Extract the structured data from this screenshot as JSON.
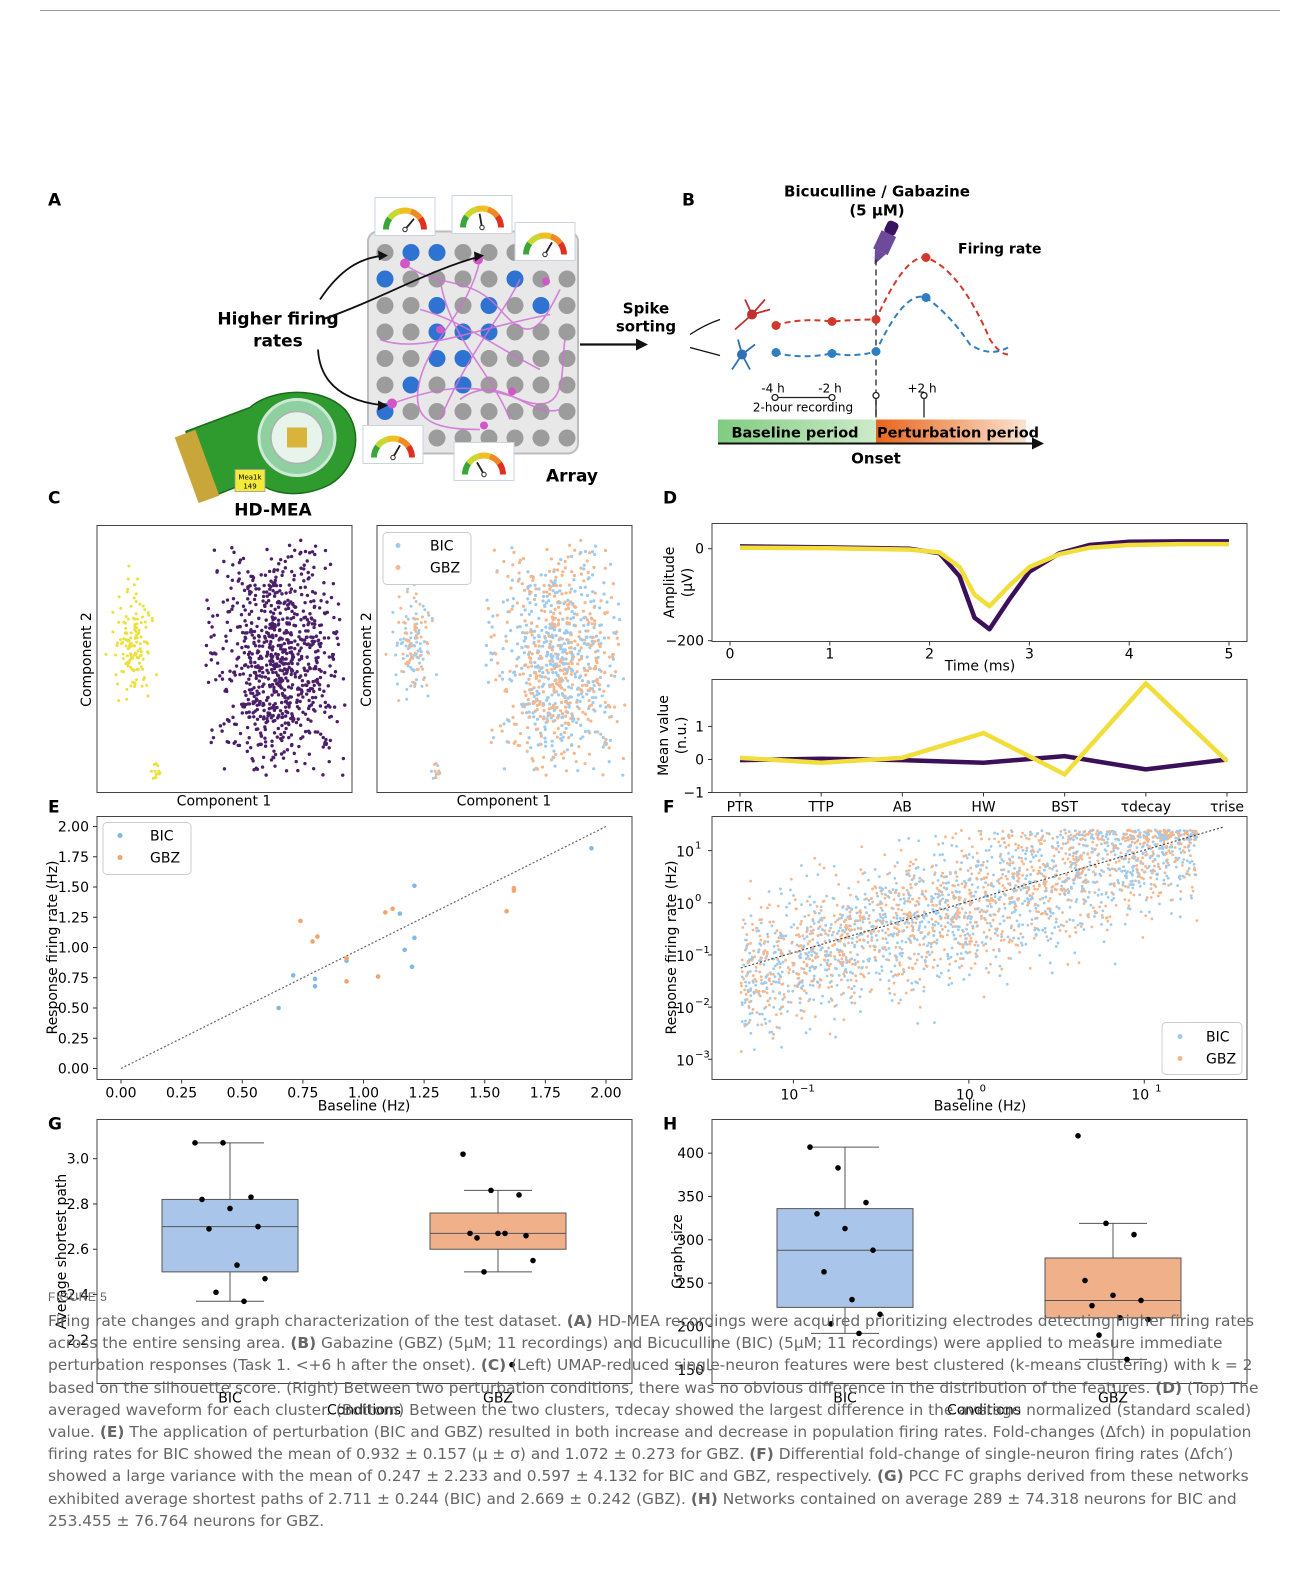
{
  "panels": {
    "A": {
      "letter": "A",
      "higher_firing": [
        "Higher firing",
        "rates"
      ],
      "array_label": "Array",
      "hdmea_label": "HD-MEA",
      "chip_text": [
        "Mea1k",
        "149"
      ],
      "spike_sorting": [
        "Spike",
        "sorting"
      ]
    },
    "B": {
      "letter": "B",
      "drug": [
        "Bicuculline / Gabazine",
        "(5 μM)"
      ],
      "firing_rate": "Firing rate",
      "ticks": [
        "-4 h",
        "-2 h",
        "+2 h"
      ],
      "recording": "2-hour recording",
      "baseline": "Baseline period",
      "perturbation": "Perturbation period",
      "onset": "Onset",
      "colors": {
        "red": "#d03a2e",
        "blue": "#2f7fc0",
        "green": "#a9dca6",
        "orange": "#ec7a2c"
      }
    },
    "C": {
      "letter": "C",
      "xlabel": "Component 1",
      "ylabel": "Component 2",
      "legend": [
        "BIC",
        "GBZ"
      ],
      "colors": {
        "cluster1": "#ece13c",
        "cluster2": "#4b1e6a",
        "bic": "#9ecbee",
        "gbz": "#f5b78e"
      }
    },
    "D": {
      "letter": "D",
      "top": {
        "ylabel": [
          "Amplitude",
          "(μV)"
        ],
        "xlabel": "Time (ms)",
        "xticks": [
          "0",
          "1",
          "2",
          "3",
          "4",
          "5"
        ],
        "yticks": [
          "0",
          "−200"
        ]
      },
      "bottom": {
        "ylabel": [
          "Mean value",
          "(n.u.)"
        ],
        "yticks": [
          "1",
          "0",
          "−1"
        ],
        "categories": [
          "PTR",
          "TTP",
          "AB",
          "HW",
          "BST",
          "τdecay",
          "τrise"
        ]
      }
    },
    "E": {
      "letter": "E",
      "xlabel": "Baseline (Hz)",
      "ylabel": "Response firing rate (Hz)",
      "ticks": [
        "0.00",
        "0.25",
        "0.50",
        "0.75",
        "1.00",
        "1.25",
        "1.50",
        "1.75",
        "2.00"
      ],
      "legend": [
        "BIC",
        "GBZ"
      ]
    },
    "F": {
      "letter": "F",
      "xlabel": "Baseline (Hz)",
      "ylabel": "Response firing rate (Hz)",
      "xticks": [
        "10",
        "10",
        "10"
      ],
      "xexp": [
        "−1",
        "0",
        "1"
      ],
      "yticks": [
        "10",
        "10",
        "10",
        "10",
        "10"
      ],
      "yexp": [
        "1",
        "0",
        "−1",
        "−2",
        "−3"
      ],
      "legend": [
        "BIC",
        "GBZ"
      ]
    },
    "G": {
      "letter": "G",
      "ylabel": "Average shortest path",
      "xlabel": "Conditions",
      "yticks": [
        "3.0",
        "2.8",
        "2.6",
        "2.4",
        "2.2"
      ],
      "categories": [
        "BIC",
        "GBZ"
      ]
    },
    "H": {
      "letter": "H",
      "ylabel": "Graph size",
      "xlabel": "Conditions",
      "yticks": [
        "400",
        "350",
        "300",
        "250",
        "200",
        "150"
      ],
      "categories": [
        "BIC",
        "GBZ"
      ]
    }
  },
  "chart_data": [
    {
      "panel": "D-top",
      "type": "line",
      "xlabel": "Time (ms)",
      "ylabel": "Amplitude (μV)",
      "xlim": [
        0,
        5
      ],
      "ylim": [
        -200,
        20
      ],
      "series": [
        {
          "color": "#3b0f5a",
          "x": [
            0.1,
            1.0,
            1.8,
            2.1,
            2.3,
            2.45,
            2.6,
            2.8,
            3.0,
            3.3,
            3.6,
            4.0,
            4.5,
            5.0
          ],
          "values": [
            5,
            3,
            0,
            -10,
            -60,
            -150,
            -175,
            -110,
            -50,
            -10,
            8,
            15,
            16,
            16
          ]
        },
        {
          "color": "#f2de3a",
          "x": [
            0.1,
            1.0,
            1.8,
            2.1,
            2.3,
            2.45,
            2.6,
            2.8,
            3.0,
            3.3,
            3.6,
            4.0,
            4.5,
            5.0
          ],
          "values": [
            2,
            1,
            -2,
            -8,
            -40,
            -100,
            -125,
            -80,
            -40,
            -12,
            2,
            8,
            10,
            10
          ]
        }
      ]
    },
    {
      "panel": "D-bottom",
      "type": "line",
      "categories": [
        "PTR",
        "TTP",
        "AB",
        "HW",
        "BST",
        "τdecay",
        "τrise"
      ],
      "ylim": [
        -1,
        2.3
      ],
      "series": [
        {
          "color": "#3b0f5a",
          "values": [
            -0.02,
            0.02,
            -0.02,
            -0.1,
            0.1,
            -0.3,
            0.0
          ]
        },
        {
          "color": "#f2de3a",
          "values": [
            0.05,
            -0.1,
            0.05,
            0.8,
            -0.45,
            2.3,
            -0.05
          ]
        }
      ]
    },
    {
      "panel": "E",
      "type": "scatter",
      "xlabel": "Baseline (Hz)",
      "ylabel": "Response firing rate (Hz)",
      "xlim": [
        0,
        2
      ],
      "ylim": [
        0,
        2
      ],
      "series": [
        {
          "name": "BIC",
          "color": "#7fb8ea",
          "x": [
            0.65,
            0.71,
            0.8,
            0.8,
            0.93,
            1.15,
            1.17,
            1.2,
            1.21,
            1.21,
            1.94
          ],
          "values": [
            0.5,
            0.77,
            0.68,
            0.74,
            0.89,
            1.28,
            0.98,
            0.84,
            1.08,
            1.51,
            1.82
          ]
        },
        {
          "name": "GBZ",
          "color": "#f5a36c",
          "x": [
            0.74,
            0.79,
            0.81,
            0.93,
            0.93,
            1.06,
            1.09,
            1.12,
            1.59,
            1.62,
            1.62
          ],
          "values": [
            1.22,
            1.05,
            1.09,
            0.72,
            0.91,
            0.76,
            1.29,
            1.32,
            1.3,
            1.47,
            1.49
          ]
        }
      ]
    },
    {
      "panel": "G",
      "type": "box",
      "categories": [
        "BIC",
        "GBZ"
      ],
      "ylabel": "Average shortest path",
      "boxes": [
        {
          "name": "BIC",
          "whisker_low": 2.37,
          "q1": 2.5,
          "median": 2.7,
          "q3": 2.82,
          "whisker_high": 3.07,
          "points": [
            3.07,
            3.07,
            2.83,
            2.82,
            2.78,
            2.7,
            2.69,
            2.53,
            2.47,
            2.41,
            2.37
          ]
        },
        {
          "name": "GBZ",
          "whisker_low": 2.5,
          "q1": 2.6,
          "median": 2.67,
          "q3": 2.76,
          "whisker_high": 2.86,
          "points": [
            3.02,
            2.86,
            2.84,
            2.67,
            2.67,
            2.66,
            2.65,
            2.67,
            2.55,
            2.5,
            2.09
          ]
        }
      ]
    },
    {
      "panel": "H",
      "type": "box",
      "categories": [
        "BIC",
        "GBZ"
      ],
      "ylabel": "Graph size",
      "boxes": [
        {
          "name": "BIC",
          "whisker_low": 192,
          "q1": 222,
          "median": 288,
          "q3": 336,
          "whisker_high": 407,
          "points": [
            407,
            383,
            343,
            330,
            313,
            288,
            263,
            231,
            214,
            203,
            192
          ]
        },
        {
          "name": "GBZ",
          "whisker_low": 162,
          "q1": 210,
          "median": 230,
          "q3": 279,
          "whisker_high": 319,
          "points": [
            420,
            319,
            306,
            253,
            236,
            230,
            224,
            210,
            208,
            190,
            162
          ]
        }
      ]
    }
  ],
  "caption": {
    "label": "FIGURE 5",
    "segments": [
      {
        "text": "Firing rate changes and graph characterization of the test dataset. "
      },
      {
        "text": "(A)",
        "bold": true
      },
      {
        "text": " HD-MEA recordings were acquired prioritizing electrodes detecting higher firing rates across the entire sensing area. "
      },
      {
        "text": "(B)",
        "bold": true
      },
      {
        "text": " Gabazine (GBZ) (5μM; 11 recordings) and Bicuculline (BIC) (5μM; 11 recordings) were applied to measure immediate perturbation responses (Task 1. <+6 h after the onset). "
      },
      {
        "text": "(C)",
        "bold": true
      },
      {
        "text": " (Left) UMAP-reduced single-neuron features were best clustered (k-means clustering) with k = 2 based on the silhouette score. (Right) Between two perturbation conditions, there was no obvious difference in the distribution of the features. "
      },
      {
        "text": "(D)",
        "bold": true
      },
      {
        "text": " (Top) The averaged waveform for each cluster. (Bottom) Between the two clusters, τdecay showed the largest difference in the average normalized (standard scaled) value. "
      },
      {
        "text": "(E)",
        "bold": true
      },
      {
        "text": " The application of perturbation (BIC and GBZ) resulted in both increase and decrease in population firing rates. Fold-changes (Δfch) in population firing rates for BIC showed the mean of 0.932 ± 0.157 (μ ± σ) and 1.072 ± 0.273 for GBZ. "
      },
      {
        "text": "(F)",
        "bold": true
      },
      {
        "text": " Differential fold-change of single-neuron firing rates (Δfch′) showed a large variance with the mean of 0.247 ± 2.233 and 0.597 ± 4.132 for BIC and GBZ, respectively. "
      },
      {
        "text": "(G)",
        "bold": true
      },
      {
        "text": " PCC FC graphs derived from these networks exhibited average shortest paths of 2.711 ± 0.244 (BIC) and 2.669 ± 0.242 (GBZ). "
      },
      {
        "text": "(H)",
        "bold": true
      },
      {
        "text": " Networks contained on average 289 ± 74.318 neurons for BIC and 253.455 ± 76.764 neurons for GBZ."
      }
    ]
  }
}
